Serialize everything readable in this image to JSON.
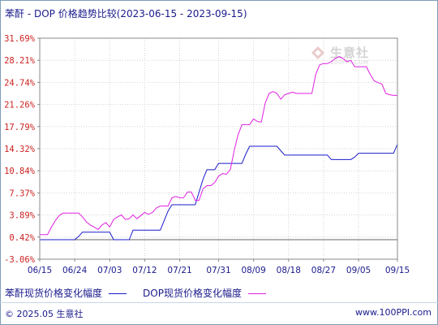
{
  "title": "苯酐 - DOP 价格趋势比较(2023-06-15 - 2023-09-15)",
  "legend": {
    "items": [
      {
        "label": "苯酐现货价格变化幅度",
        "color": "#1a1acc"
      },
      {
        "label": "DOP现货价格变化幅度",
        "color": "#e020e0"
      }
    ]
  },
  "watermark": {
    "text": "生意社",
    "url": "100PPI.COM"
  },
  "footer": {
    "left": "© 2025.05 生意社",
    "right": "www.100PPI.com"
  },
  "chart_data": {
    "type": "line",
    "y_ticks": [
      "31.69%",
      "28.21%",
      "24.74%",
      "21.26%",
      "17.79%",
      "14.32%",
      "10.84%",
      "7.37%",
      "3.89%",
      "0.42%",
      "-3.06%"
    ],
    "y_tick_values": [
      31.69,
      28.21,
      24.74,
      21.26,
      17.79,
      14.32,
      10.84,
      7.37,
      3.89,
      0.42,
      -3.06
    ],
    "ylim": [
      -3.06,
      31.69
    ],
    "x_ticks": [
      "06/15",
      "06/24",
      "07/03",
      "07/12",
      "07/21",
      "07/31",
      "08/09",
      "08/18",
      "08/27",
      "09/05",
      "09/15"
    ],
    "x_tick_days": [
      0,
      9,
      18,
      27,
      36,
      46,
      55,
      64,
      73,
      82,
      92
    ],
    "xlim": [
      0,
      92
    ],
    "grid": true,
    "zero_line": 0,
    "series": [
      {
        "name": "苯酐现货价格变化幅度",
        "color": "#1a1acc",
        "x": [
          0,
          9,
          10,
          11,
          16,
          18,
          19,
          23,
          24,
          31,
          32,
          33,
          34,
          35,
          40,
          41,
          42,
          43,
          44,
          45,
          46,
          47,
          48,
          52,
          53,
          54,
          61,
          62,
          63,
          73,
          74,
          75,
          80,
          81,
          82,
          91,
          92
        ],
        "y": [
          0.0,
          0.0,
          0.5,
          1.2,
          1.2,
          1.2,
          0.0,
          0.0,
          1.5,
          1.5,
          3.0,
          4.5,
          5.5,
          5.5,
          5.5,
          7.5,
          9.5,
          11.0,
          11.0,
          11.0,
          12.0,
          12.0,
          12.0,
          12.0,
          13.5,
          14.7,
          14.7,
          14.0,
          13.3,
          13.3,
          13.3,
          12.6,
          12.6,
          13.0,
          13.6,
          13.6,
          15.0
        ]
      },
      {
        "name": "DOP现货价格变化幅度",
        "color": "#e020e0",
        "x": [
          0,
          2,
          3,
          4,
          5,
          6,
          10,
          11,
          12,
          13,
          14,
          15,
          16,
          17,
          18,
          19,
          20,
          21,
          22,
          23,
          24,
          25,
          26,
          27,
          28,
          29,
          30,
          31,
          32,
          33,
          34,
          35,
          36,
          37,
          38,
          39,
          40,
          41,
          42,
          43,
          44,
          45,
          46,
          47,
          48,
          49,
          50,
          51,
          52,
          53,
          54,
          55,
          56,
          57,
          58,
          59,
          60,
          61,
          62,
          63,
          64,
          65,
          66,
          67,
          68,
          69,
          70,
          71,
          72,
          73,
          74,
          75,
          76,
          77,
          78,
          79,
          80,
          81,
          82,
          83,
          84,
          85,
          86,
          87,
          88,
          89,
          90,
          91,
          92
        ],
        "y": [
          0.8,
          0.8,
          2.0,
          3.0,
          3.8,
          4.2,
          4.2,
          3.6,
          2.8,
          2.3,
          2.0,
          1.6,
          2.3,
          2.7,
          2.0,
          3.2,
          3.6,
          3.9,
          3.2,
          3.3,
          3.9,
          3.3,
          3.8,
          4.3,
          4.0,
          4.3,
          5.0,
          5.3,
          5.3,
          5.3,
          6.6,
          6.8,
          6.6,
          6.6,
          7.5,
          7.5,
          6.2,
          6.2,
          8.0,
          8.5,
          8.5,
          9.0,
          10.0,
          10.4,
          10.3,
          11.0,
          14.0,
          16.5,
          18.1,
          18.1,
          18.1,
          19.0,
          18.6,
          18.5,
          21.5,
          23.0,
          23.3,
          23.0,
          22.1,
          22.8,
          23.0,
          23.2,
          23.0,
          23.0,
          23.0,
          23.0,
          23.0,
          26.0,
          27.5,
          27.7,
          27.7,
          28.0,
          28.5,
          28.8,
          28.5,
          28.0,
          28.2,
          27.2,
          27.2,
          27.2,
          27.2,
          26.0,
          25.0,
          24.7,
          24.5,
          23.0,
          22.8,
          22.7,
          22.7
        ]
      }
    ]
  }
}
